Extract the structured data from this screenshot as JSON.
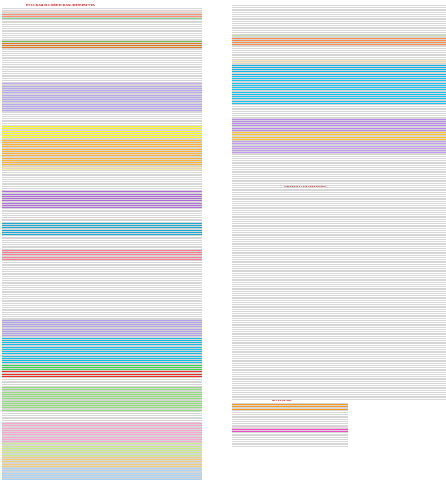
{
  "headings": {
    "left": "РУССКАЯ И СОВЕТСКАЯ ЛИТЕРАТУРА",
    "right": "ЛИТЕРАТУРА НАРОДОВ",
    "bottom": "ЖУРНАЛЫ"
  },
  "bands_left": [
    {
      "at": 0,
      "to": 3,
      "color": "#ffffff"
    },
    {
      "at": 3,
      "to": 6,
      "color": "#fbd8cf"
    },
    {
      "at": 6,
      "to": 9,
      "color": "#ff8f6f"
    },
    {
      "at": 9,
      "to": 12,
      "color": "#7fd28f"
    },
    {
      "at": 16,
      "to": 31,
      "color": "#ffffff"
    },
    {
      "at": 31,
      "to": 34,
      "color": "#6fbf4f"
    },
    {
      "at": 34,
      "to": 40,
      "color": "#e07a1f"
    },
    {
      "at": 74,
      "to": 77,
      "color": "#c9a8f2"
    },
    {
      "at": 77,
      "to": 105,
      "color": "#b9a6f0"
    },
    {
      "at": 105,
      "to": 118,
      "color": "#ffffff"
    },
    {
      "at": 118,
      "to": 132,
      "color": "#fff81e"
    },
    {
      "at": 132,
      "to": 158,
      "color": "#ffb233"
    },
    {
      "at": 158,
      "to": 162,
      "color": "#fde8a6"
    },
    {
      "at": 162,
      "to": 183,
      "color": "#ffffff"
    },
    {
      "at": 183,
      "to": 200,
      "color": "#b06ad9"
    },
    {
      "at": 200,
      "to": 214,
      "color": "#ffffff"
    },
    {
      "at": 214,
      "to": 228,
      "color": "#1aaad6"
    },
    {
      "at": 228,
      "to": 242,
      "color": "#ffffff"
    },
    {
      "at": 242,
      "to": 252,
      "color": "#ff7a8f"
    },
    {
      "at": 252,
      "to": 312,
      "color": "#ffffff"
    },
    {
      "at": 312,
      "to": 330,
      "color": "#b09fe8"
    },
    {
      "at": 330,
      "to": 356,
      "color": "#17bde3"
    },
    {
      "at": 356,
      "to": 362,
      "color": "#3dd24f"
    },
    {
      "at": 362,
      "to": 370,
      "color": "#f02a25"
    },
    {
      "at": 370,
      "to": 378,
      "color": "#ffffff"
    },
    {
      "at": 378,
      "to": 404,
      "color": "#8fdf7a"
    },
    {
      "at": 404,
      "to": 414,
      "color": "#ffffff"
    },
    {
      "at": 414,
      "to": 434,
      "color": "#f9a3cf"
    },
    {
      "at": 434,
      "to": 448,
      "color": "#c9ec85"
    },
    {
      "at": 448,
      "to": 460,
      "color": "#f2cd7a"
    },
    {
      "at": 460,
      "to": 472,
      "color": "#a9d1f2"
    }
  ],
  "bands_right": [
    {
      "at": 30,
      "to": 33,
      "color": "#c7dfa3"
    },
    {
      "at": 33,
      "to": 40,
      "color": "#ff8a4a"
    },
    {
      "at": 54,
      "to": 58,
      "color": "#ffe6b2"
    },
    {
      "at": 58,
      "to": 70,
      "color": "#18b5e9"
    },
    {
      "at": 70,
      "to": 100,
      "color": "#18c3f0"
    },
    {
      "at": 100,
      "to": 112,
      "color": "#ffffff"
    },
    {
      "at": 112,
      "to": 126,
      "color": "#b984ee"
    },
    {
      "at": 126,
      "to": 136,
      "color": "#ffc12a"
    },
    {
      "at": 136,
      "to": 150,
      "color": "#c49af0"
    },
    {
      "at": 150,
      "to": 168,
      "color": "#ffffff"
    }
  ],
  "bands_bottom": [
    {
      "at": 0,
      "to": 8,
      "color": "#f7991f"
    },
    {
      "at": 8,
      "to": 14,
      "color": "#ffffff"
    },
    {
      "at": 22,
      "to": 26,
      "color": "#ffcce6"
    },
    {
      "at": 26,
      "to": 30,
      "color": "#f04bc7"
    },
    {
      "at": 30,
      "to": 44,
      "color": "#ffffff"
    }
  ]
}
